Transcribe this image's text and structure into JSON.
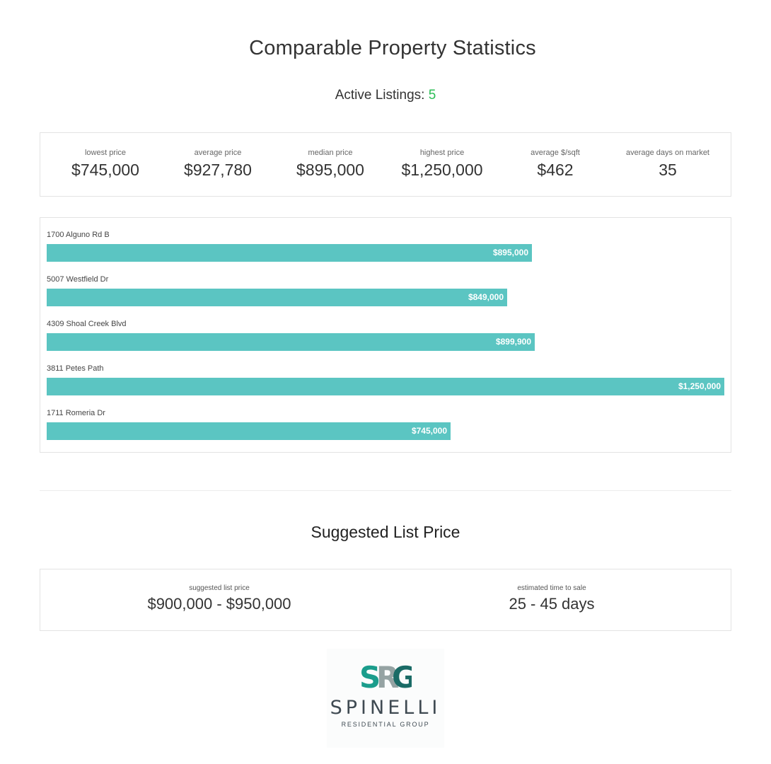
{
  "title": "Comparable Property Statistics",
  "active_label": "Active Listings:",
  "active_count": "5",
  "stats": [
    {
      "label": "lowest price",
      "value": "$745,000"
    },
    {
      "label": "average price",
      "value": "$927,780"
    },
    {
      "label": "median price",
      "value": "$895,000"
    },
    {
      "label": "highest price",
      "value": "$1,250,000"
    },
    {
      "label": "average $/sqft",
      "value": "$462"
    },
    {
      "label": "average days on market",
      "value": "35"
    }
  ],
  "chart_data": {
    "type": "bar",
    "categories": [
      "1700 Alguno Rd B",
      "5007 Westfield Dr",
      "4309 Shoal Creek Blvd",
      "3811 Petes Path",
      "1711 Romeria Dr"
    ],
    "values": [
      895000,
      849000,
      899900,
      1250000,
      745000
    ],
    "labels": [
      "$895,000",
      "$849,000",
      "$899,900",
      "$1,250,000",
      "$745,000"
    ],
    "xlim": [
      0,
      1250000
    ],
    "bar_color": "#5bc5c2"
  },
  "suggested": {
    "heading": "Suggested List Price",
    "price_label": "suggested list price",
    "price_value": "$900,000 - $950,000",
    "time_label": "estimated time to sale",
    "time_value": "25 - 45 days"
  },
  "logo": {
    "monogram": "SRG",
    "name": "SPINELLI",
    "tagline": "RESIDENTIAL GROUP"
  },
  "colors": {
    "accent_teal": "#5bc5c2",
    "count_green": "#2bbd55",
    "logo_teal": "#1b9d8c",
    "logo_gray": "#8a9a9a"
  }
}
